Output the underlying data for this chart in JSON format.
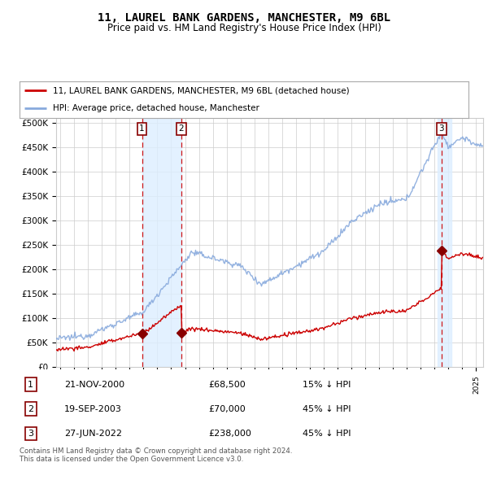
{
  "title": "11, LAUREL BANK GARDENS, MANCHESTER, M9 6BL",
  "subtitle": "Price paid vs. HM Land Registry's House Price Index (HPI)",
  "ylim": [
    0,
    510000
  ],
  "yticks": [
    0,
    50000,
    100000,
    150000,
    200000,
    250000,
    300000,
    350000,
    400000,
    450000,
    500000
  ],
  "ytick_labels": [
    "£0",
    "£50K",
    "£100K",
    "£150K",
    "£200K",
    "£250K",
    "£300K",
    "£350K",
    "£400K",
    "£450K",
    "£500K"
  ],
  "xlim_start": 1994.7,
  "xlim_end": 2025.5,
  "sales": [
    {
      "date_num": 2000.89,
      "price": 68500,
      "label": "1"
    },
    {
      "date_num": 2003.72,
      "price": 70000,
      "label": "2"
    },
    {
      "date_num": 2022.49,
      "price": 238000,
      "label": "3"
    }
  ],
  "legend_entries": [
    {
      "color": "#cc0000",
      "label": "11, LAUREL BANK GARDENS, MANCHESTER, M9 6BL (detached house)"
    },
    {
      "color": "#88aadd",
      "label": "HPI: Average price, detached house, Manchester"
    }
  ],
  "table_rows": [
    {
      "num": "1",
      "date": "21-NOV-2000",
      "price": "£68,500",
      "note": "15% ↓ HPI"
    },
    {
      "num": "2",
      "date": "19-SEP-2003",
      "price": "£70,000",
      "note": "45% ↓ HPI"
    },
    {
      "num": "3",
      "date": "27-JUN-2022",
      "price": "£238,000",
      "note": "45% ↓ HPI"
    }
  ],
  "footer": "Contains HM Land Registry data © Crown copyright and database right 2024.\nThis data is licensed under the Open Government Licence v3.0.",
  "sale_marker_color": "#880000",
  "hpi_line_color": "#88aadd",
  "price_line_color": "#cc0000",
  "vline_color": "#cc0000",
  "highlight_color": "#ddeeff",
  "grid_color": "#cccccc",
  "background_color": "#ffffff"
}
